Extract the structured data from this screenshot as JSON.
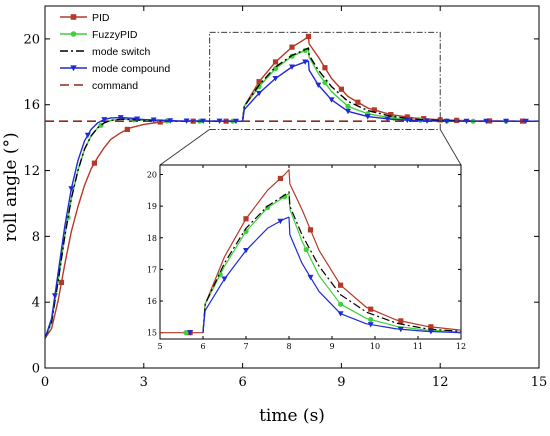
{
  "chart_data": {
    "type": "line",
    "xlabel": "time (s)",
    "ylabel": "roll angle (°)",
    "xlim": [
      0,
      15
    ],
    "ylim": [
      0,
      22
    ],
    "xticks": [
      0,
      3,
      6,
      9,
      12,
      15
    ],
    "yticks": [
      0,
      4,
      8,
      12,
      16,
      20
    ],
    "legend_position": "top-left",
    "grid": false,
    "series": [
      {
        "name": "PID",
        "color": "#b5392a",
        "dash": "solid",
        "marker": "square",
        "points": [
          [
            0,
            1.8
          ],
          [
            0.2,
            2.4
          ],
          [
            0.4,
            4.1
          ],
          [
            0.6,
            6.3
          ],
          [
            0.8,
            8.3
          ],
          [
            1.0,
            9.8
          ],
          [
            1.2,
            11.1
          ],
          [
            1.4,
            12.1
          ],
          [
            1.6,
            12.8
          ],
          [
            1.8,
            13.4
          ],
          [
            2.0,
            13.9
          ],
          [
            2.3,
            14.3
          ],
          [
            2.6,
            14.6
          ],
          [
            3.0,
            14.8
          ],
          [
            3.5,
            14.95
          ],
          [
            4.0,
            15.0
          ],
          [
            5.0,
            15.0
          ],
          [
            6.0,
            15.0
          ],
          [
            6.05,
            15.9
          ],
          [
            6.5,
            17.4
          ],
          [
            7.0,
            18.6
          ],
          [
            7.5,
            19.5
          ],
          [
            7.9,
            20.0
          ],
          [
            8.0,
            20.15
          ],
          [
            8.02,
            19.7
          ],
          [
            8.3,
            18.9
          ],
          [
            8.7,
            17.6
          ],
          [
            9.2,
            16.5
          ],
          [
            9.8,
            15.8
          ],
          [
            10.5,
            15.4
          ],
          [
            11.2,
            15.2
          ],
          [
            12,
            15.08
          ],
          [
            13,
            15.02
          ],
          [
            15,
            15.0
          ]
        ],
        "marker_x": [
          0.5,
          1.5,
          2.5,
          3.5,
          4.5,
          5.5,
          6.5,
          7.0,
          7.5,
          8.0,
          8.5,
          9.0,
          9.5,
          10.0,
          10.5,
          11.0,
          11.5,
          12.0,
          12.5,
          13.5,
          14.5
        ]
      },
      {
        "name": "FuzzyPID",
        "color": "#3fd13a",
        "dash": "solid",
        "marker": "circle",
        "points": [
          [
            0,
            1.8
          ],
          [
            0.2,
            2.8
          ],
          [
            0.4,
            5.3
          ],
          [
            0.6,
            8.0
          ],
          [
            0.8,
            10.3
          ],
          [
            1.0,
            12.0
          ],
          [
            1.2,
            13.3
          ],
          [
            1.4,
            14.1
          ],
          [
            1.6,
            14.6
          ],
          [
            1.8,
            14.9
          ],
          [
            2.0,
            15.05
          ],
          [
            2.3,
            15.12
          ],
          [
            2.6,
            15.1
          ],
          [
            3.0,
            15.05
          ],
          [
            4.0,
            15.0
          ],
          [
            6.0,
            15.0
          ],
          [
            6.05,
            15.9
          ],
          [
            6.5,
            17.1
          ],
          [
            7.0,
            18.2
          ],
          [
            7.5,
            18.95
          ],
          [
            7.9,
            19.3
          ],
          [
            8.0,
            19.4
          ],
          [
            8.02,
            18.9
          ],
          [
            8.3,
            17.9
          ],
          [
            8.7,
            16.8
          ],
          [
            9.2,
            15.9
          ],
          [
            9.8,
            15.45
          ],
          [
            10.5,
            15.2
          ],
          [
            11.2,
            15.08
          ],
          [
            12,
            15.02
          ],
          [
            13,
            15.0
          ],
          [
            15,
            15.0
          ]
        ],
        "marker_x": [
          0.7,
          1.7,
          2.7,
          3.7,
          4.7,
          5.7,
          6.5,
          7.0,
          7.5,
          7.9,
          8.5,
          9.2,
          9.8,
          10.6,
          11.4,
          12.2,
          13.0,
          14.0
        ]
      },
      {
        "name": "mode switch",
        "color": "#000000",
        "dash": "dashdot",
        "marker": "none",
        "points": [
          [
            0,
            1.8
          ],
          [
            0.2,
            2.8
          ],
          [
            0.4,
            5.3
          ],
          [
            0.6,
            8.0
          ],
          [
            0.8,
            10.3
          ],
          [
            1.0,
            12.0
          ],
          [
            1.2,
            13.3
          ],
          [
            1.4,
            14.1
          ],
          [
            1.6,
            14.6
          ],
          [
            1.8,
            14.9
          ],
          [
            2.0,
            15.05
          ],
          [
            2.3,
            15.12
          ],
          [
            2.6,
            15.1
          ],
          [
            3.0,
            15.05
          ],
          [
            4.0,
            15.0
          ],
          [
            6.0,
            15.0
          ],
          [
            6.05,
            15.9
          ],
          [
            6.5,
            17.2
          ],
          [
            7.0,
            18.3
          ],
          [
            7.5,
            19.0
          ],
          [
            7.9,
            19.35
          ],
          [
            8.0,
            19.45
          ],
          [
            8.02,
            19.0
          ],
          [
            8.3,
            18.1
          ],
          [
            8.7,
            17.1
          ],
          [
            9.2,
            16.2
          ],
          [
            9.8,
            15.65
          ],
          [
            10.5,
            15.3
          ],
          [
            11.2,
            15.12
          ],
          [
            12,
            15.04
          ],
          [
            13,
            15.0
          ],
          [
            15,
            15.0
          ]
        ],
        "marker_x": []
      },
      {
        "name": "mode compound",
        "color": "#1f2ad6",
        "dash": "solid",
        "marker": "triangle-down",
        "points": [
          [
            0,
            1.8
          ],
          [
            0.2,
            3.0
          ],
          [
            0.4,
            5.8
          ],
          [
            0.6,
            8.6
          ],
          [
            0.8,
            10.9
          ],
          [
            1.0,
            12.6
          ],
          [
            1.2,
            13.8
          ],
          [
            1.4,
            14.5
          ],
          [
            1.6,
            14.9
          ],
          [
            1.8,
            15.1
          ],
          [
            2.0,
            15.2
          ],
          [
            2.3,
            15.22
          ],
          [
            2.6,
            15.18
          ],
          [
            3.0,
            15.1
          ],
          [
            4.0,
            15.02
          ],
          [
            6.0,
            15.0
          ],
          [
            6.05,
            15.7
          ],
          [
            6.5,
            16.7
          ],
          [
            7.0,
            17.6
          ],
          [
            7.5,
            18.3
          ],
          [
            7.9,
            18.6
          ],
          [
            8.0,
            18.65
          ],
          [
            8.02,
            18.1
          ],
          [
            8.3,
            17.2
          ],
          [
            8.7,
            16.3
          ],
          [
            9.2,
            15.6
          ],
          [
            9.8,
            15.28
          ],
          [
            10.5,
            15.12
          ],
          [
            11.2,
            15.04
          ],
          [
            12,
            15.0
          ],
          [
            15,
            15.0
          ]
        ],
        "marker_x": [
          0.3,
          0.8,
          1.3,
          1.8,
          2.3,
          2.8,
          3.3,
          3.8,
          4.3,
          4.8,
          5.3,
          5.8,
          6.5,
          7.0,
          7.5,
          7.9,
          8.3,
          8.7,
          9.2,
          9.8,
          10.4,
          11.0,
          11.6,
          12.2,
          12.8,
          13.4,
          14.0,
          14.6
        ]
      },
      {
        "name": "command",
        "color": "#8b2a1d",
        "dash": "dashed",
        "marker": "none",
        "points": [
          [
            0,
            15
          ],
          [
            15,
            15
          ]
        ],
        "marker_x": []
      }
    ],
    "inset": {
      "source_xlim": [
        5,
        12
      ],
      "source_ylim": [
        14.5,
        20.4
      ],
      "xlim": [
        5,
        12
      ],
      "ylim": [
        14.8,
        20.3
      ],
      "xticks": [
        5,
        6,
        7,
        8,
        9,
        10,
        11,
        12
      ],
      "yticks": [
        15,
        16,
        17,
        18,
        19,
        20
      ],
      "inset_markers": {
        "PID": [
          5.7,
          7.0,
          7.8,
          8.5,
          9.2,
          9.9,
          10.6,
          11.3
        ],
        "FuzzyPID": [
          5.6,
          6.4,
          7.0,
          7.5,
          7.9,
          8.4,
          9.2,
          9.9
        ],
        "mode compound": [
          5.7,
          6.5,
          7.0,
          7.8,
          8.5,
          9.2,
          9.9,
          10.6,
          11.3
        ]
      }
    }
  }
}
